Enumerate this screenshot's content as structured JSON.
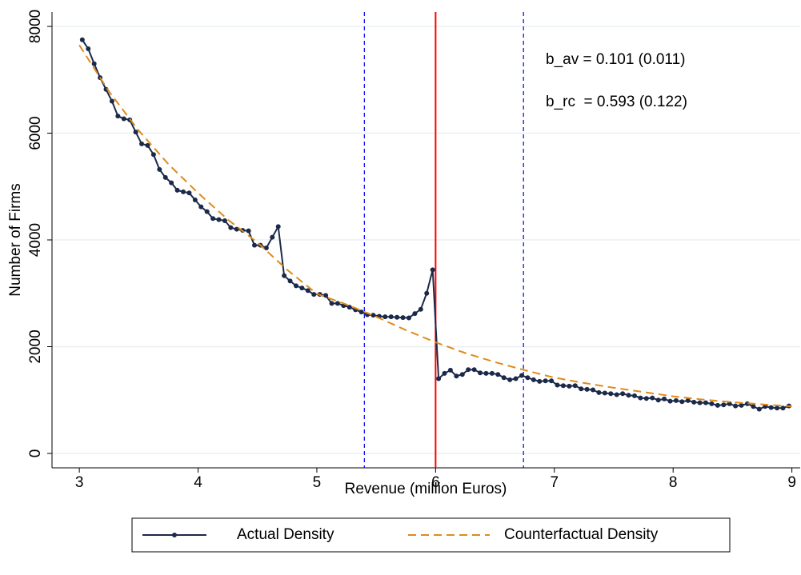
{
  "chart_data": {
    "type": "line",
    "x_label": "Revenue (million Euros)",
    "y_label": "Number of Firms",
    "xlim": [
      2.77,
      9.07
    ],
    "ylim": [
      -270,
      8270
    ],
    "xticks": [
      3,
      4,
      5,
      6,
      7,
      8,
      9
    ],
    "yticks": [
      0,
      2000,
      4000,
      6000,
      8000
    ],
    "grid": true,
    "legend": "bottom",
    "series": [
      {
        "name": "Actual Density",
        "color": "#1c2a4a",
        "style": "solid",
        "markers": true,
        "x": [
          3.025,
          3.075,
          3.125,
          3.175,
          3.225,
          3.275,
          3.325,
          3.375,
          3.425,
          3.475,
          3.525,
          3.575,
          3.625,
          3.675,
          3.725,
          3.775,
          3.825,
          3.875,
          3.925,
          3.975,
          4.025,
          4.075,
          4.125,
          4.175,
          4.225,
          4.275,
          4.325,
          4.375,
          4.425,
          4.475,
          4.525,
          4.575,
          4.625,
          4.675,
          4.725,
          4.775,
          4.825,
          4.875,
          4.925,
          4.975,
          5.025,
          5.075,
          5.125,
          5.175,
          5.225,
          5.275,
          5.325,
          5.375,
          5.425,
          5.475,
          5.525,
          5.575,
          5.625,
          5.675,
          5.725,
          5.775,
          5.825,
          5.875,
          5.925,
          5.975,
          6.025,
          6.075,
          6.125,
          6.175,
          6.225,
          6.275,
          6.325,
          6.375,
          6.425,
          6.475,
          6.525,
          6.575,
          6.625,
          6.675,
          6.725,
          6.775,
          6.825,
          6.875,
          6.925,
          6.975,
          7.025,
          7.075,
          7.125,
          7.175,
          7.225,
          7.275,
          7.325,
          7.375,
          7.425,
          7.475,
          7.525,
          7.575,
          7.625,
          7.675,
          7.725,
          7.775,
          7.825,
          7.875,
          7.925,
          7.975,
          8.025,
          8.075,
          8.125,
          8.175,
          8.225,
          8.275,
          8.325,
          8.375,
          8.425,
          8.475,
          8.525,
          8.575,
          8.625,
          8.675,
          8.725,
          8.775,
          8.825,
          8.875,
          8.925,
          8.975
        ],
        "values": [
          7750,
          7580,
          7300,
          7040,
          6820,
          6600,
          6320,
          6270,
          6250,
          6020,
          5800,
          5770,
          5600,
          5320,
          5170,
          5070,
          4930,
          4900,
          4880,
          4750,
          4620,
          4530,
          4400,
          4380,
          4360,
          4230,
          4200,
          4180,
          4170,
          3900,
          3900,
          3850,
          4050,
          4250,
          3330,
          3230,
          3140,
          3100,
          3050,
          2980,
          2980,
          2960,
          2810,
          2810,
          2770,
          2740,
          2690,
          2650,
          2600,
          2590,
          2570,
          2560,
          2560,
          2550,
          2545,
          2540,
          2620,
          2700,
          3000,
          3440,
          1400,
          1500,
          1560,
          1450,
          1480,
          1570,
          1570,
          1510,
          1500,
          1500,
          1480,
          1420,
          1380,
          1400,
          1460,
          1420,
          1380,
          1350,
          1360,
          1360,
          1280,
          1270,
          1260,
          1270,
          1210,
          1200,
          1190,
          1140,
          1130,
          1120,
          1100,
          1120,
          1090,
          1080,
          1040,
          1030,
          1040,
          1000,
          1020,
          980,
          990,
          970,
          990,
          960,
          950,
          950,
          930,
          900,
          910,
          930,
          890,
          900,
          930,
          880,
          830,
          880,
          860,
          850,
          850,
          890
        ]
      },
      {
        "name": "Counterfactual Density",
        "color": "#e08b1a",
        "style": "dashed",
        "markers": false,
        "x": [
          3.0,
          3.25,
          3.5,
          3.75,
          4.0,
          4.25,
          4.5,
          4.75,
          5.0,
          5.25,
          5.5,
          5.75,
          6.0,
          6.25,
          6.5,
          6.75,
          7.0,
          7.25,
          7.5,
          7.75,
          8.0,
          8.25,
          8.5,
          8.75,
          9.0
        ],
        "values": [
          7650,
          6780,
          6050,
          5420,
          4880,
          4380,
          3950,
          3440,
          2990,
          2790,
          2560,
          2310,
          2080,
          1880,
          1710,
          1560,
          1420,
          1320,
          1230,
          1150,
          1070,
          1010,
          960,
          920,
          880
        ]
      }
    ],
    "vlines": [
      {
        "x": 5.4,
        "color": "#0000ff",
        "style": "dashed"
      },
      {
        "x": 6.0,
        "color": "#ff0000",
        "style": "solid"
      },
      {
        "x": 6.74,
        "color": "#0000ff",
        "style": "dashed"
      }
    ],
    "annotations": [
      "b_av = 0.101 (0.011)",
      "b_rc  = 0.593 (0.122)"
    ]
  }
}
